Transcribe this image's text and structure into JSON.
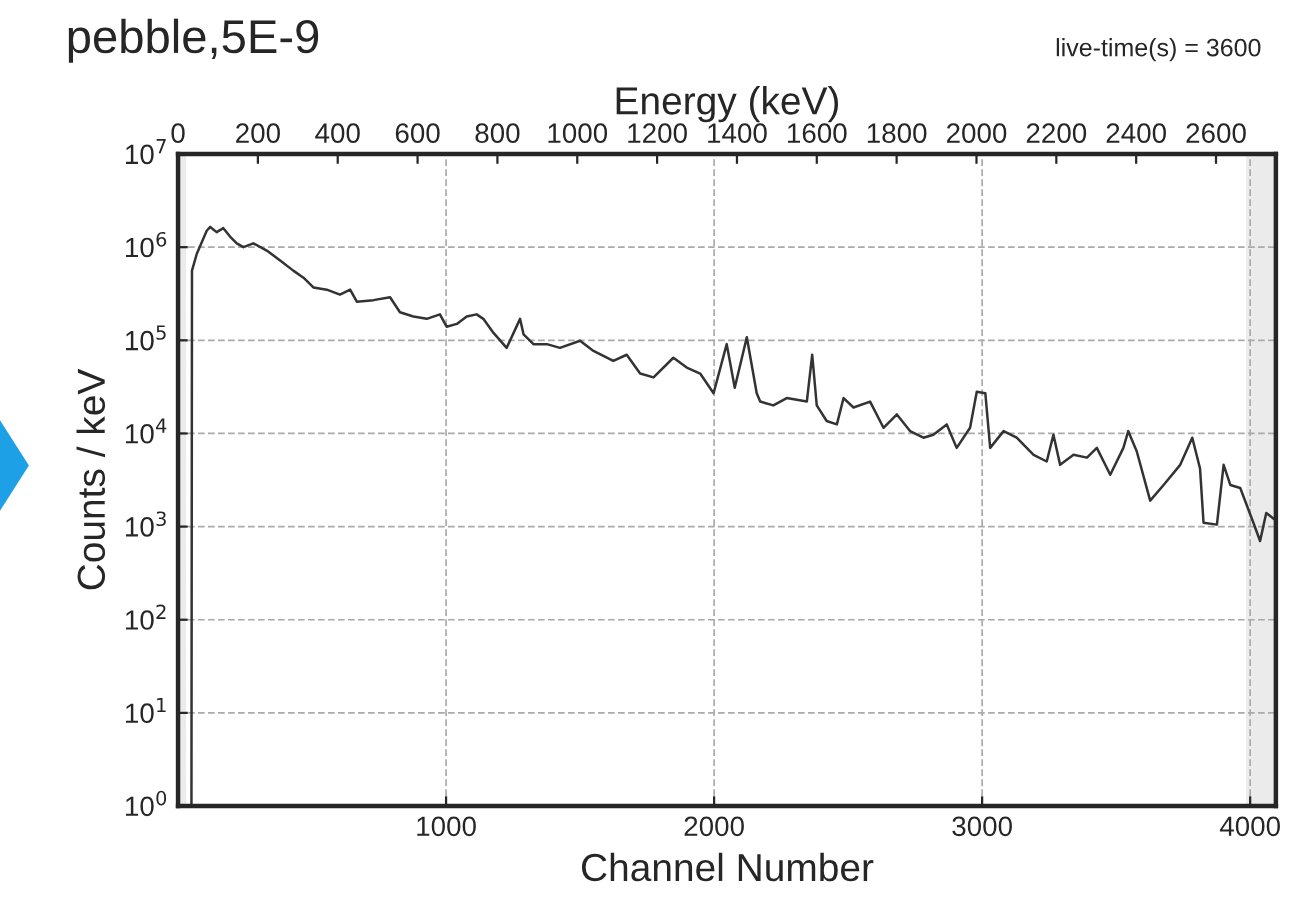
{
  "chart_data": {
    "type": "line",
    "title": "pebble,5E-9",
    "xlabel": "Channel Number",
    "ylabel": "Counts / keV",
    "x2label": "Energy (keV)",
    "annotations": [
      "live-time(s) = 3600"
    ],
    "log": "y",
    "grid": true,
    "legend": false,
    "line_style": "solid",
    "marker": "none",
    "xlim": [
      0,
      4096
    ],
    "xticks": [
      1000,
      2000,
      3000,
      4000
    ],
    "x2lim": [
      0,
      2750
    ],
    "x2ticks": [
      0,
      200,
      400,
      600,
      800,
      1000,
      1200,
      1400,
      1600,
      1800,
      2000,
      2200,
      2400,
      2600
    ],
    "ylim": [
      1,
      10000000
    ],
    "yticks": [
      {
        "value": 1,
        "label": "10$^{0}$"
      },
      {
        "value": 10,
        "label": "10$^{1}$"
      },
      {
        "value": 100,
        "label": "10$^{2}$"
      },
      {
        "value": 1000,
        "label": "10$^{3}$"
      },
      {
        "value": 10000,
        "label": "10$^{4}$"
      },
      {
        "value": 100000,
        "label": "10$^{5}$"
      },
      {
        "value": 1000000,
        "label": "10$^{6}$"
      },
      {
        "value": 10000000,
        "label": "10$^{7}$"
      }
    ],
    "bands": [
      {
        "axis": "x",
        "from": 0,
        "to": 30,
        "color": "#ebebeb"
      },
      {
        "axis": "x",
        "from": 3985,
        "to": 4096,
        "color": "#ebebeb"
      }
    ],
    "series": [
      {
        "color": "#333333",
        "x": [
          40,
          50,
          52,
          70,
          107,
          120,
          144,
          169,
          194,
          219,
          244,
          281,
          331,
          381,
          430,
          468,
          505,
          555,
          604,
          642,
          667,
          729,
          791,
          828,
          878,
          928,
          977,
          1002,
          1040,
          1077,
          1114,
          1139,
          1177,
          1226,
          1276,
          1289,
          1326,
          1376,
          1425,
          1500,
          1550,
          1624,
          1674,
          1724,
          1774,
          1848,
          1898,
          1948,
          1998,
          2047,
          2077,
          2122,
          2159,
          2172,
          2221,
          2271,
          2346,
          2366,
          2383,
          2420,
          2458,
          2483,
          2520,
          2582,
          2632,
          2682,
          2731,
          2781,
          2818,
          2868,
          2905,
          2955,
          2980,
          3012,
          3030,
          3080,
          3129,
          3192,
          3241,
          3266,
          3291,
          3341,
          3391,
          3428,
          3478,
          3527,
          3545,
          3577,
          3627,
          3677,
          3739,
          3784,
          3813,
          3826,
          3876,
          3901,
          3926,
          3963,
          4012,
          4037,
          4060,
          4090
        ],
        "values": [
          1,
          1,
          560000,
          850000,
          1500000,
          1650000,
          1450000,
          1600000,
          1300000,
          1100000,
          1000000,
          1100000,
          920000,
          720000,
          560000,
          470000,
          370000,
          350000,
          310000,
          350000,
          260000,
          270000,
          290000,
          200000,
          180000,
          170000,
          190000,
          140000,
          150000,
          180000,
          190000,
          170000,
          120000,
          83000,
          170000,
          116000,
          91000,
          91000,
          83000,
          99000,
          77000,
          60000,
          70000,
          44000,
          40000,
          65000,
          51000,
          44000,
          27000,
          91000,
          31000,
          108000,
          27000,
          22000,
          20000,
          24000,
          22000,
          70000,
          20000,
          13600,
          12500,
          24000,
          19000,
          22000,
          11500,
          16000,
          10600,
          9000,
          9700,
          12500,
          7000,
          11500,
          28000,
          27000,
          7000,
          10600,
          9000,
          5900,
          5000,
          9700,
          4600,
          5900,
          5500,
          7000,
          3600,
          7000,
          10600,
          6400,
          1900,
          2800,
          4600,
          9000,
          4200,
          1100,
          1050,
          4600,
          2800,
          2600,
          1100,
          700,
          1400,
          1200
        ]
      }
    ]
  }
}
